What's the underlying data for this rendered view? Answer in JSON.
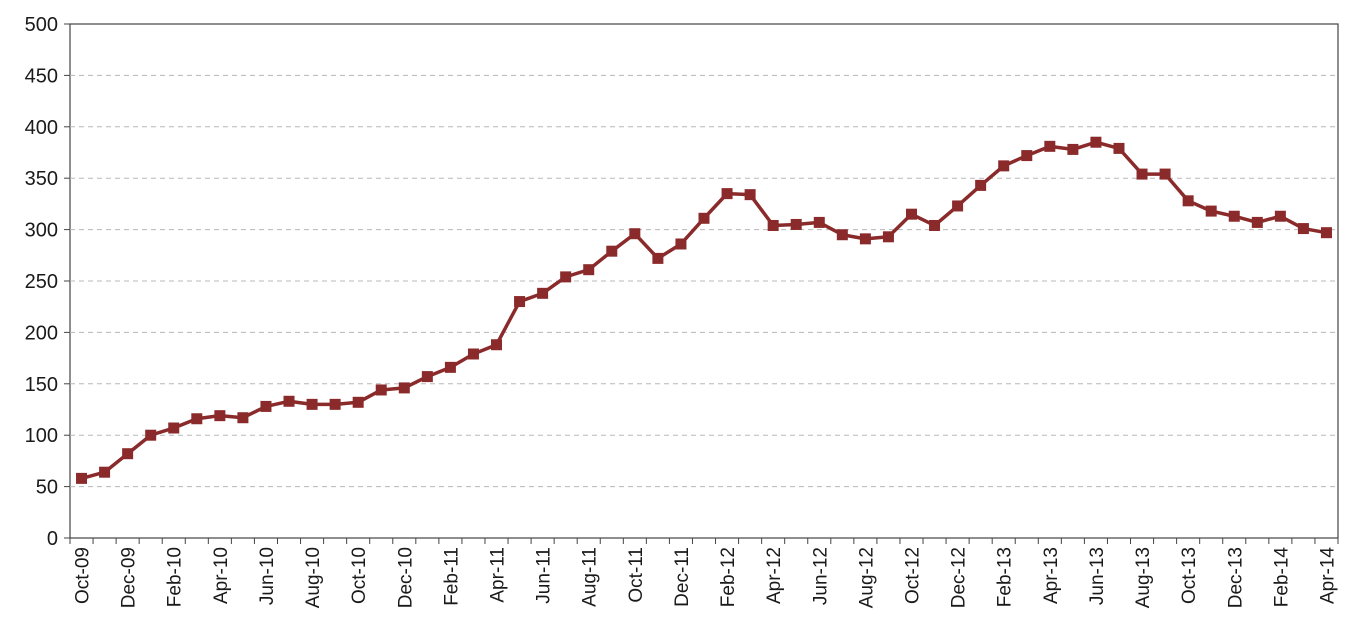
{
  "chart_data": {
    "type": "line",
    "title": "",
    "xlabel": "",
    "ylabel": "",
    "ylim": [
      0,
      500
    ],
    "yticks": [
      0,
      50,
      100,
      150,
      200,
      250,
      300,
      350,
      400,
      450,
      500
    ],
    "grid": "horizontal dashed",
    "legend": "none",
    "series_color": "#8B2A2A",
    "x": [
      "Oct-09",
      "Nov-09",
      "Dec-09",
      "Jan-10",
      "Feb-10",
      "Mar-10",
      "Apr-10",
      "May-10",
      "Jun-10",
      "Jul-10",
      "Aug-10",
      "Sep-10",
      "Oct-10",
      "Nov-10",
      "Dec-10",
      "Jan-11",
      "Feb-11",
      "Mar-11",
      "Apr-11",
      "May-11",
      "Jun-11",
      "Jul-11",
      "Aug-11",
      "Sep-11",
      "Oct-11",
      "Nov-11",
      "Dec-11",
      "Jan-12",
      "Feb-12",
      "Mar-12",
      "Apr-12",
      "May-12",
      "Jun-12",
      "Jul-12",
      "Aug-12",
      "Sep-12",
      "Oct-12",
      "Nov-12",
      "Dec-12",
      "Jan-13",
      "Feb-13",
      "Mar-13",
      "Apr-13",
      "May-13",
      "Jun-13",
      "Jul-13",
      "Aug-13",
      "Sep-13",
      "Oct-13",
      "Nov-13",
      "Dec-13",
      "Jan-14",
      "Feb-14",
      "Mar-14",
      "Apr-14"
    ],
    "x_tick_labels": [
      "Oct-09",
      "Dec-09",
      "Feb-10",
      "Apr-10",
      "Jun-10",
      "Aug-10",
      "Oct-10",
      "Dec-10",
      "Feb-11",
      "Apr-11",
      "Jun-11",
      "Aug-11",
      "Oct-11",
      "Dec-11",
      "Feb-12",
      "Apr-12",
      "Jun-12",
      "Aug-12",
      "Oct-12",
      "Dec-12",
      "Feb-13",
      "Apr-13",
      "Jun-13",
      "Aug-13",
      "Oct-13",
      "Dec-13",
      "Feb-14",
      "Apr-14"
    ],
    "series": [
      {
        "values": [
          58,
          64,
          82,
          100,
          107,
          116,
          119,
          117,
          128,
          133,
          130,
          130,
          132,
          144,
          146,
          157,
          166,
          179,
          188,
          230,
          238,
          254,
          261,
          279,
          296,
          272,
          286,
          311,
          335,
          334,
          304,
          305,
          307,
          295,
          291,
          293,
          315,
          304,
          323,
          343,
          362,
          372,
          381,
          378,
          385,
          379,
          354,
          354,
          328,
          318,
          313,
          307,
          313,
          301,
          297
        ]
      }
    ]
  }
}
